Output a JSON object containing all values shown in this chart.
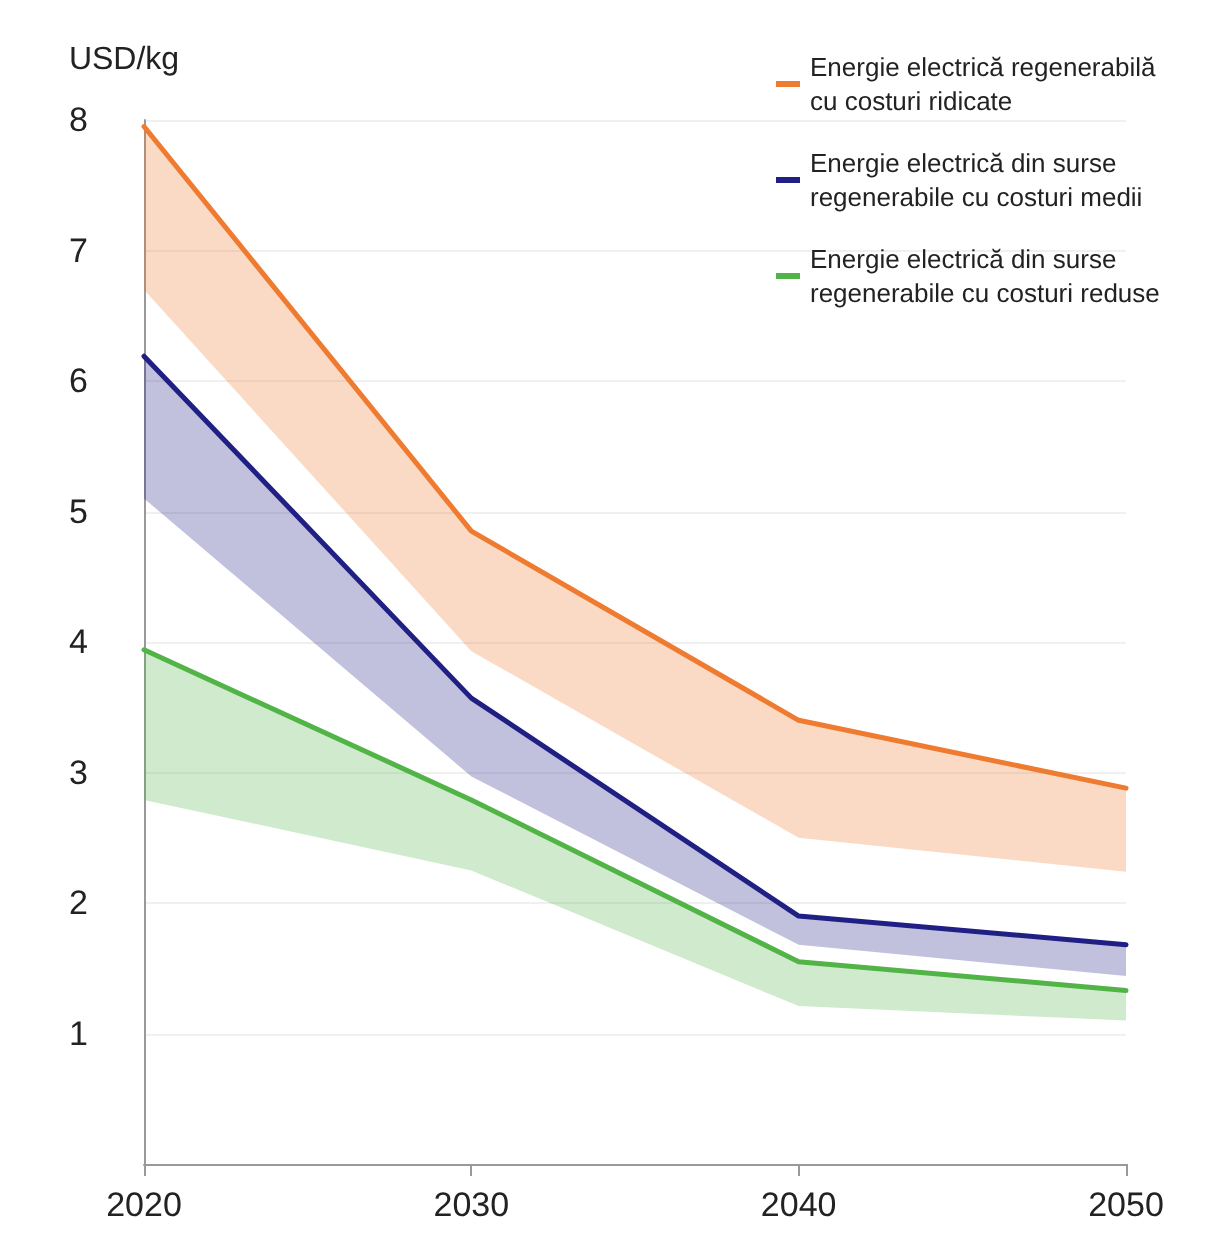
{
  "chart_data": {
    "type": "line",
    "ylabel": "USD/kg",
    "x": [
      2020,
      2030,
      2040,
      2050
    ],
    "xlim": [
      2020,
      2050
    ],
    "xticks": [
      2020,
      2030,
      2040,
      2050
    ],
    "ylim": [
      0,
      8
    ],
    "yticks": [
      {
        "value": 0,
        "label": null
      },
      1,
      2,
      3,
      4,
      5,
      6,
      7,
      8
    ],
    "grid": "y",
    "legend": "top right",
    "marker": "none",
    "line_style": "solid",
    "series": [
      {
        "name": "Energie electrică regenerabilă cu costuri ridicate",
        "color": "#ee7b30",
        "values": [
          7.95,
          4.85,
          3.4,
          2.88
        ],
        "lower": [
          6.7,
          3.93,
          2.5,
          2.24
        ],
        "upper": [
          7.95,
          4.85,
          3.4,
          2.88
        ]
      },
      {
        "name": "Energie electrică din surse regenerabile cu costuri medii",
        "color": "#1f1f84",
        "values": [
          6.19,
          3.57,
          1.9,
          1.68
        ],
        "lower": [
          5.1,
          2.97,
          1.68,
          1.44
        ],
        "upper": [
          6.19,
          3.57,
          1.9,
          1.68
        ]
      },
      {
        "name": "Energie electrică din surse regenerabile cu costuri reduse",
        "color": "#52b447",
        "values": [
          3.94,
          2.79,
          1.55,
          1.33
        ],
        "lower": [
          2.79,
          2.25,
          1.21,
          1.1
        ],
        "upper": [
          3.94,
          2.79,
          1.55,
          1.33
        ]
      }
    ]
  }
}
